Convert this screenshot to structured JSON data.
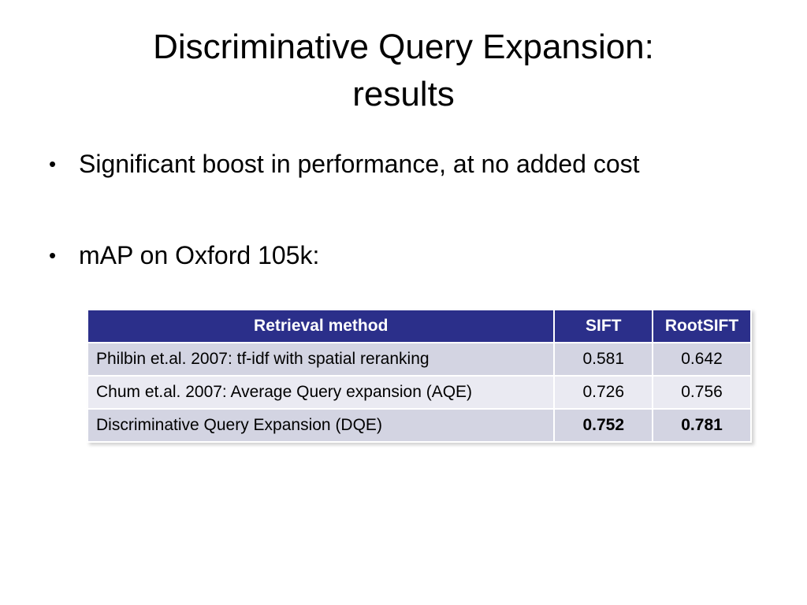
{
  "slide": {
    "title_line1": "Discriminative Query Expansion:",
    "title_line2": "results",
    "bullets": [
      {
        "symbol": "•",
        "text": "Significant boost in performance, at no added cost"
      },
      {
        "symbol": "•",
        "text": "mAP on Oxford 105k:"
      }
    ],
    "table": {
      "headers": [
        "Retrieval method",
        "SIFT",
        "RootSIFT"
      ],
      "rows": [
        {
          "method": "Philbin et.al. 2007: tf-idf with spatial reranking",
          "sift": "0.581",
          "rootsift": "0.642"
        },
        {
          "method": "Chum et.al. 2007: Average Query expansion (AQE)",
          "sift": "0.726",
          "rootsift": "0.756"
        },
        {
          "method": "Discriminative Query Expansion (DQE)",
          "sift": "0.752",
          "rootsift": "0.781"
        }
      ]
    }
  }
}
